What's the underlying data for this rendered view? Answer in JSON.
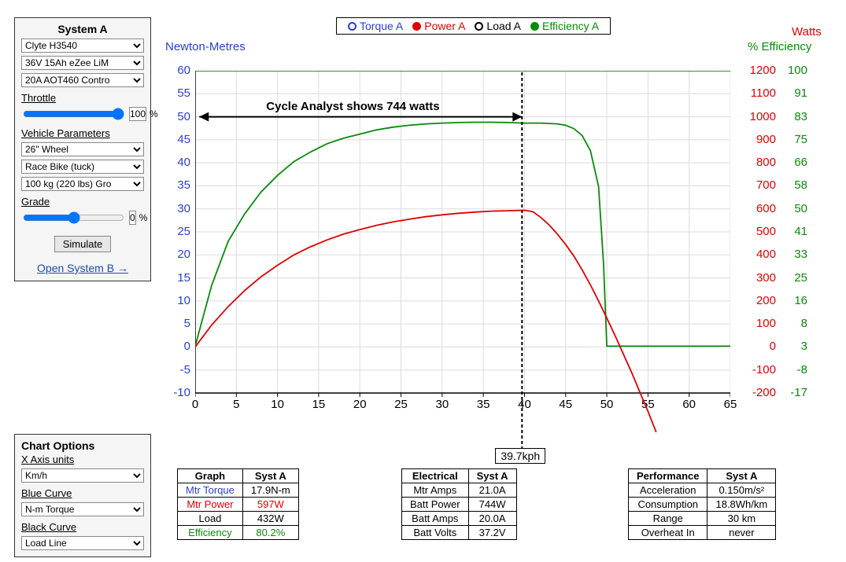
{
  "systemA": {
    "title": "System A",
    "motor": "Clyte H3540",
    "battery": "36V 15Ah eZee LiM",
    "controller": "20A AOT460 Contro",
    "throttle_label": "Throttle",
    "throttle_value": "100",
    "throttle_unit": "%",
    "vehicle_params_label": "Vehicle Parameters",
    "wheel": "26\"  Wheel",
    "bike": "Race Bike (tuck)",
    "weight": "100 kg (220 lbs) Gro",
    "grade_label": "Grade",
    "grade_value": "0",
    "grade_unit": "%",
    "simulate_label": "Simulate",
    "open_b": "Open System B →"
  },
  "chart_options": {
    "title": "Chart Options",
    "xaxis_label": "X Axis units",
    "xaxis_value": "Km/h",
    "blue_label": "Blue Curve",
    "blue_value": "N-m Torque",
    "black_label": "Black Curve",
    "black_value": "Load Line"
  },
  "legend": {
    "items": [
      {
        "label": "Torque A",
        "color": "#2a3fcf",
        "filled": false
      },
      {
        "label": "Power A",
        "color": "#e00000",
        "filled": true
      },
      {
        "label": "Load A",
        "color": "#000000",
        "filled": false
      },
      {
        "label": "Efficiency A",
        "color": "#0a8a0a",
        "filled": true
      }
    ]
  },
  "cursor": {
    "x_kph": 39.7,
    "label": "39.7kph"
  },
  "annotation": {
    "text": "Cycle Analyst shows 744 watts"
  },
  "chart": {
    "type": "line",
    "x": {
      "min": 0,
      "max": 65,
      "step": 5,
      "title": ""
    },
    "y_left": {
      "title": "Newton-Metres",
      "color": "#2a3fcf",
      "min": -10,
      "max": 60,
      "step": 5
    },
    "y_right_watts": {
      "title": "Watts",
      "color": "#e00000",
      "min": -200,
      "max": 1200,
      "step": 100
    },
    "y_right_eff": {
      "title": "% Efficiency",
      "color": "#0a8a0a",
      "ticks": [
        100,
        91,
        83,
        75,
        66,
        58,
        50,
        41,
        33,
        25,
        16,
        8,
        3,
        -8,
        -17
      ]
    },
    "grid_color": "#dcdcdc",
    "background_color": "#ffffff",
    "line_width": 1.8,
    "series": {
      "efficiency": {
        "color": "#0a8a0a",
        "yaxis": "eff",
        "points": [
          [
            0,
            0
          ],
          [
            2,
            22
          ],
          [
            4,
            38
          ],
          [
            6,
            48
          ],
          [
            8,
            56
          ],
          [
            10,
            62
          ],
          [
            12,
            67
          ],
          [
            14,
            70.5
          ],
          [
            16,
            73.5
          ],
          [
            18,
            75.5
          ],
          [
            20,
            77
          ],
          [
            22,
            78.5
          ],
          [
            24,
            79.5
          ],
          [
            26,
            80.2
          ],
          [
            28,
            80.7
          ],
          [
            30,
            81
          ],
          [
            32,
            81.2
          ],
          [
            34,
            81.3
          ],
          [
            36,
            81.3
          ],
          [
            38,
            81.2
          ],
          [
            40,
            81
          ],
          [
            42,
            81
          ],
          [
            44,
            80.7
          ],
          [
            45,
            80.2
          ],
          [
            46,
            79
          ],
          [
            47,
            76.5
          ],
          [
            48,
            71
          ],
          [
            49,
            58
          ],
          [
            49.6,
            30
          ],
          [
            50,
            0
          ],
          [
            55,
            0
          ],
          [
            65,
            0
          ]
        ]
      },
      "efficiency_top": {
        "color": "#0a8a0a",
        "yaxis": "eff",
        "points": [
          [
            0,
            100
          ],
          [
            65,
            100
          ]
        ]
      },
      "power": {
        "color": "#e00000",
        "yaxis": "watts",
        "points": [
          [
            0,
            0
          ],
          [
            2,
            95
          ],
          [
            4,
            175
          ],
          [
            6,
            245
          ],
          [
            8,
            305
          ],
          [
            10,
            355
          ],
          [
            12,
            400
          ],
          [
            14,
            435
          ],
          [
            16,
            465
          ],
          [
            18,
            490
          ],
          [
            20,
            510
          ],
          [
            22,
            528
          ],
          [
            24,
            543
          ],
          [
            26,
            555
          ],
          [
            28,
            566
          ],
          [
            30,
            574
          ],
          [
            32,
            581
          ],
          [
            34,
            586
          ],
          [
            36,
            590
          ],
          [
            38,
            592
          ],
          [
            40,
            594
          ],
          [
            41,
            588
          ],
          [
            42,
            562
          ],
          [
            43,
            530
          ],
          [
            44,
            490
          ],
          [
            45,
            445
          ],
          [
            46,
            395
          ],
          [
            47,
            335
          ],
          [
            48,
            270
          ],
          [
            49,
            200
          ],
          [
            50,
            125
          ],
          [
            51,
            50
          ],
          [
            52,
            -30
          ],
          [
            53,
            -110
          ],
          [
            54,
            -195
          ],
          [
            55,
            -280
          ],
          [
            56,
            -370
          ]
        ]
      }
    }
  },
  "tables": {
    "graph": {
      "header": [
        "Graph",
        "Syst A"
      ],
      "rows": [
        {
          "label": "Mtr Torque",
          "value": "17.9N-m",
          "label_color": "#2a3fcf",
          "value_color": "#000"
        },
        {
          "label": "Mtr Power",
          "value": "597W",
          "label_color": "#e00000",
          "value_color": "#e00000"
        },
        {
          "label": "Load",
          "value": "432W",
          "label_color": "#000",
          "value_color": "#000"
        },
        {
          "label": "Efficiency",
          "value": "80.2%",
          "label_color": "#0a8a0a",
          "value_color": "#0a8a0a"
        }
      ]
    },
    "electrical": {
      "header": [
        "Electrical",
        "Syst A"
      ],
      "rows": [
        {
          "label": "Mtr Amps",
          "value": "21.0A"
        },
        {
          "label": "Batt Power",
          "value": "744W"
        },
        {
          "label": "Batt Amps",
          "value": "20.0A"
        },
        {
          "label": "Batt Volts",
          "value": "37.2V"
        }
      ]
    },
    "performance": {
      "header": [
        "Performance",
        "Syst A"
      ],
      "rows": [
        {
          "label": "Acceleration",
          "value": "0.150m/s²"
        },
        {
          "label": "Consumption",
          "value": "18.8Wh/km"
        },
        {
          "label": "Range",
          "value": "30 km"
        },
        {
          "label": "Overheat In",
          "value": "never"
        }
      ]
    }
  }
}
